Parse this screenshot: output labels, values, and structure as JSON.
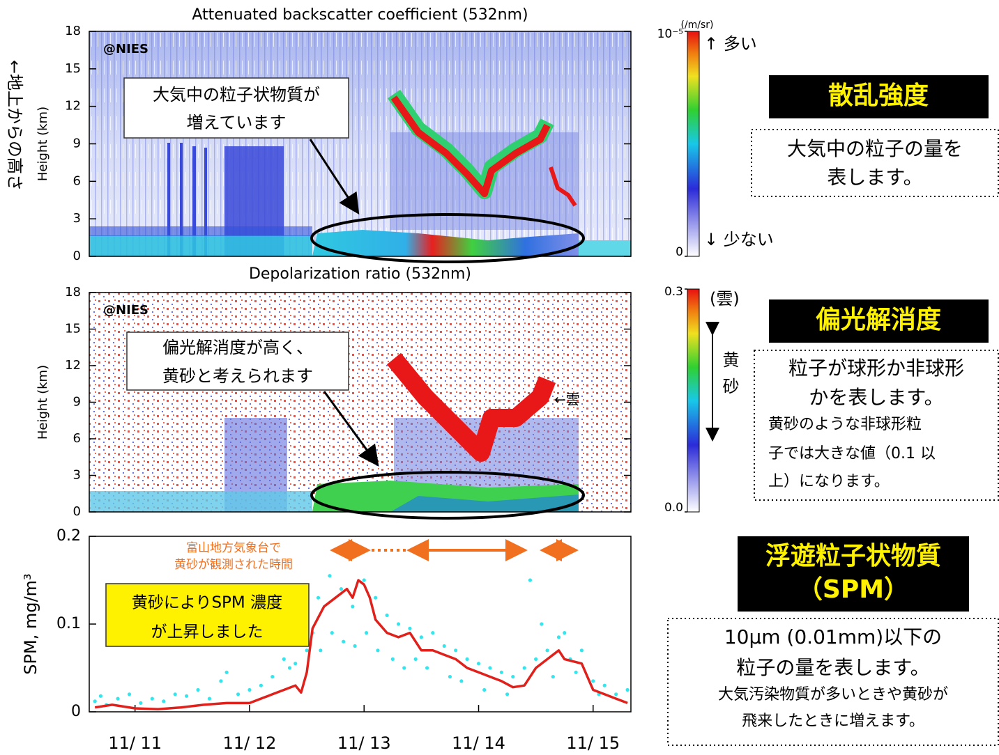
{
  "chart_data": [
    {
      "type": "heatmap",
      "title": "Attenuated backscatter coefficient (532nm)",
      "y_label": "Height (km)",
      "ylim": [
        0,
        18
      ],
      "yticks": [
        0,
        3,
        6,
        9,
        12,
        15,
        18
      ],
      "watermark": "@NIES",
      "colorbar": {
        "ylim": [
          0,
          1e-05
        ],
        "yticks": [
          0,
          {
            "value": 1e-05,
            "label": "10⁻⁵"
          }
        ],
        "unit": "(/m/sr)",
        "top_label": "↑ 多い",
        "bottom_label": "↓ 少ない"
      },
      "callout": [
        "大気中の粒子状物質が",
        "増えています"
      ]
    },
    {
      "type": "heatmap",
      "title": "Depolarization ratio (532nm)",
      "y_label": "Height (km)",
      "ylim": [
        0,
        18
      ],
      "yticks": [
        0,
        3,
        6,
        9,
        12,
        15,
        18
      ],
      "watermark": "@NIES",
      "colorbar": {
        "ylim": [
          0,
          0.3
        ],
        "yticks": [
          {
            "value": 0,
            "label": "0.0"
          },
          {
            "value": 0.3,
            "label": "0.3"
          }
        ],
        "top_label": "(雲)",
        "range_label": "黄砂"
      },
      "callout": [
        "偏光解消度が高く、",
        "黄砂と考えられます"
      ],
      "cloud_label": "←雲"
    },
    {
      "type": "line",
      "y_label": "SPM, mg/m³",
      "xlim": [
        10.6,
        15.33
      ],
      "xticks": [
        {
          "value": 11,
          "label": "11/ 11"
        },
        {
          "value": 12,
          "label": "11/ 12"
        },
        {
          "value": 13,
          "label": "11/ 13"
        },
        {
          "value": 14,
          "label": "11/ 14"
        },
        {
          "value": 15,
          "label": "11/ 15"
        }
      ],
      "ylim": [
        0,
        0.2
      ],
      "yticks": [
        0,
        0.1,
        0.2
      ],
      "annotation": [
        "富山地方気象台で",
        "黄砂が観測された時間"
      ],
      "callout": [
        "黄砂によりSPM 濃度",
        "が上昇しました"
      ],
      "series": [
        {
          "kind": "scatter",
          "color": "#33e6ee",
          "x": [
            10.65,
            10.7,
            10.75,
            10.85,
            10.95,
            11.05,
            11.15,
            11.25,
            11.35,
            11.45,
            11.55,
            11.65,
            11.75,
            11.8,
            11.9,
            12.0,
            12.1,
            12.2,
            12.3,
            12.35,
            12.4,
            12.5,
            12.55,
            12.6,
            12.62,
            12.7,
            12.72,
            12.8,
            12.82,
            12.9,
            12.92,
            13.0,
            13.02,
            13.1,
            13.12,
            13.2,
            13.25,
            13.3,
            13.35,
            13.4,
            13.45,
            13.5,
            13.55,
            13.6,
            13.7,
            13.75,
            13.8,
            13.85,
            13.9,
            14.0,
            14.05,
            14.1,
            14.2,
            14.25,
            14.3,
            14.4,
            14.45,
            14.5,
            14.55,
            14.6,
            14.65,
            14.7,
            14.75,
            14.8,
            14.85,
            14.9,
            15.0,
            15.05,
            15.1,
            15.2,
            15.3
          ],
          "values": [
            0.012,
            0.018,
            0.008,
            0.015,
            0.02,
            0.01,
            0.015,
            0.012,
            0.02,
            0.018,
            0.025,
            0.015,
            0.035,
            0.045,
            0.02,
            0.025,
            0.03,
            0.04,
            0.06,
            0.05,
            0.055,
            0.07,
            0.09,
            0.13,
            0.07,
            0.155,
            0.09,
            0.14,
            0.08,
            0.12,
            0.075,
            0.15,
            0.09,
            0.13,
            0.07,
            0.11,
            0.06,
            0.1,
            0.05,
            0.095,
            0.06,
            0.085,
            0.05,
            0.09,
            0.075,
            0.04,
            0.07,
            0.035,
            0.06,
            0.055,
            0.025,
            0.05,
            0.045,
            0.02,
            0.04,
            0.05,
            0.15,
            0.06,
            0.1,
            0.07,
            0.04,
            0.085,
            0.09,
            0.06,
            0.045,
            0.07,
            0.035,
            0.02,
            0.03,
            0.02,
            0.025
          ]
        },
        {
          "kind": "line",
          "color": "#e0201b",
          "x": [
            10.65,
            10.8,
            11.0,
            11.2,
            11.4,
            11.6,
            11.8,
            12.0,
            12.2,
            12.3,
            12.4,
            12.45,
            12.5,
            12.55,
            12.65,
            12.75,
            12.85,
            12.9,
            12.95,
            13.0,
            13.05,
            13.1,
            13.2,
            13.3,
            13.4,
            13.5,
            13.6,
            13.7,
            13.8,
            13.9,
            14.0,
            14.1,
            14.2,
            14.3,
            14.4,
            14.5,
            14.6,
            14.7,
            14.75,
            14.9,
            15.0,
            15.1,
            15.2,
            15.3
          ],
          "values": [
            0.005,
            0.008,
            0.004,
            0.003,
            0.005,
            0.008,
            0.01,
            0.01,
            0.02,
            0.025,
            0.03,
            0.022,
            0.045,
            0.095,
            0.12,
            0.13,
            0.14,
            0.13,
            0.15,
            0.145,
            0.13,
            0.105,
            0.09,
            0.085,
            0.09,
            0.07,
            0.07,
            0.065,
            0.06,
            0.05,
            0.045,
            0.04,
            0.035,
            0.028,
            0.03,
            0.05,
            0.06,
            0.07,
            0.06,
            0.055,
            0.025,
            0.02,
            0.015,
            0.01
          ]
        }
      ]
    }
  ],
  "height_note": "←地上からの高さ",
  "side_notes": [
    {
      "heading": [
        "散乱強度"
      ],
      "text": [
        "大気中の粒子の量を",
        "表します。"
      ],
      "detail": []
    },
    {
      "heading": [
        "偏光解消度"
      ],
      "text": [
        "粒子が球形か非球形",
        "かを表します。"
      ],
      "detail": [
        "黄砂のような非球形粒",
        "子では大きな値（0.1 以",
        "上）になります。"
      ]
    },
    {
      "heading": [
        "浮遊粒子状物質",
        "（SPM）"
      ],
      "text": [
        "10μm (0.01mm)以下の",
        "粒子の量を表します。"
      ],
      "detail": [
        "大気汚染物質が多いときや黄砂が",
        "飛来したときに増えます。"
      ]
    }
  ]
}
